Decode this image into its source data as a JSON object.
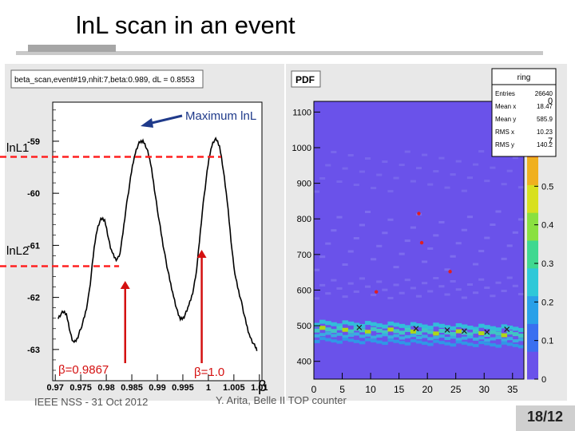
{
  "slide": {
    "title": "lnL scan in an event",
    "footer_left": "IEEE NSS - 31 Oct 2012",
    "footer_center": "Y. Arita, Belle II TOP counter",
    "page_number": "18/12"
  },
  "annotations": {
    "max_label": "Maximum lnL",
    "lnl1": "lnL1",
    "lnl2": "lnL2",
    "beta1": "β=0.9867",
    "beta2": "β=1.0",
    "beta_symbol": "β"
  },
  "chart_data": [
    {
      "type": "line",
      "canvas_title": "beta_scan,event#19,nhit:7,beta:0.989, dL = 0.8553",
      "x_ticks": [
        "0.97",
        "0.975",
        "0.98",
        "0.985",
        "0.99",
        "0.995",
        "1",
        "1.005",
        "1.01"
      ],
      "xlim": [
        0.9695,
        1.0105
      ],
      "y_ticks": [
        "-59",
        "-60",
        "-61",
        "-62",
        "-63"
      ],
      "ylim": [
        -63.6,
        -58.25
      ],
      "series": [
        {
          "x": [
            0.9705,
            0.972,
            0.9735,
            0.975,
            0.9765,
            0.978,
            0.9795,
            0.981,
            0.9825,
            0.984,
            0.9855,
            0.987,
            0.9885,
            0.99,
            0.9915,
            0.993,
            0.9945,
            0.996,
            0.9975,
            0.999,
            1.0005,
            1.002,
            1.0035,
            1.005,
            1.0065,
            1.008,
            1.0095
          ],
          "y": [
            -62.4,
            -62.3,
            -62.85,
            -62.6,
            -62.0,
            -60.8,
            -60.5,
            -61.1,
            -61.2,
            -60.2,
            -59.3,
            -59.0,
            -59.35,
            -60.3,
            -61.2,
            -61.9,
            -62.4,
            -62.2,
            -61.6,
            -60.2,
            -59.15,
            -59.05,
            -60.0,
            -61.4,
            -62.1,
            -62.7,
            -63.0
          ]
        }
      ],
      "markers": {
        "max_x": 0.9867,
        "max_y": -58.98,
        "lnl1_y": -59.3,
        "lnl2_y": -61.4
      }
    },
    {
      "type": "heatmap",
      "pdf_label": "PDF",
      "x_ticks": [
        "0",
        "5",
        "10",
        "15",
        "20",
        "25",
        "30",
        "35"
      ],
      "xlim": [
        0,
        37
      ],
      "y_ticks": [
        "400",
        "500",
        "600",
        "700",
        "800",
        "900",
        "1000",
        "1100"
      ],
      "ylim": [
        350,
        1130
      ],
      "z_ticks": [
        "0",
        "0.1",
        "0.2",
        "0.3",
        "0.4",
        "0.5",
        "0.6"
      ],
      "z_range": [
        0,
        0.72
      ],
      "stats": {
        "name": "ring",
        "rows": [
          {
            "label": "Entries",
            "value": "26640"
          },
          {
            "label": "Mean x",
            "value": "18.47"
          },
          {
            "label": "Mean y",
            "value": "585.9"
          },
          {
            "label": "RMS x",
            "value": "10.23"
          },
          {
            "label": "RMS y",
            "value": "140.2"
          }
        ]
      },
      "hits": [
        {
          "x": 8.0,
          "y": 495
        },
        {
          "x": 18.0,
          "y": 492
        },
        {
          "x": 23.5,
          "y": 488
        },
        {
          "x": 26.5,
          "y": 485
        },
        {
          "x": 30.5,
          "y": 482
        },
        {
          "x": 34.0,
          "y": 490
        }
      ],
      "red_dots": [
        {
          "x": 18.5,
          "y": 815
        },
        {
          "x": 11.0,
          "y": 595
        },
        {
          "x": 24.0,
          "y": 652
        },
        {
          "x": 19.0,
          "y": 733
        }
      ],
      "colors": {
        "background": "#6a52ea",
        "band": "#28d0d8",
        "band_hot": "#b8e600"
      }
    }
  ]
}
